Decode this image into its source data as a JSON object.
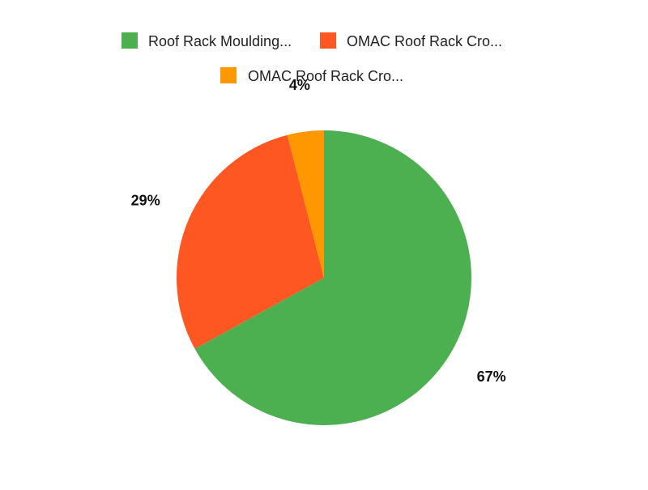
{
  "chart_data": {
    "type": "pie",
    "categories": [
      "Roof Rack Moulding...",
      "OMAC Roof Rack Cro...",
      "OMAC Roof Rack Cro..."
    ],
    "values": [
      67,
      29,
      4
    ],
    "value_labels": [
      "67%",
      "29%",
      "4%"
    ],
    "colors": [
      "#4caf50",
      "#ff5722",
      "#ff9800"
    ],
    "legend_position": "top",
    "start": "top, clockwise"
  }
}
